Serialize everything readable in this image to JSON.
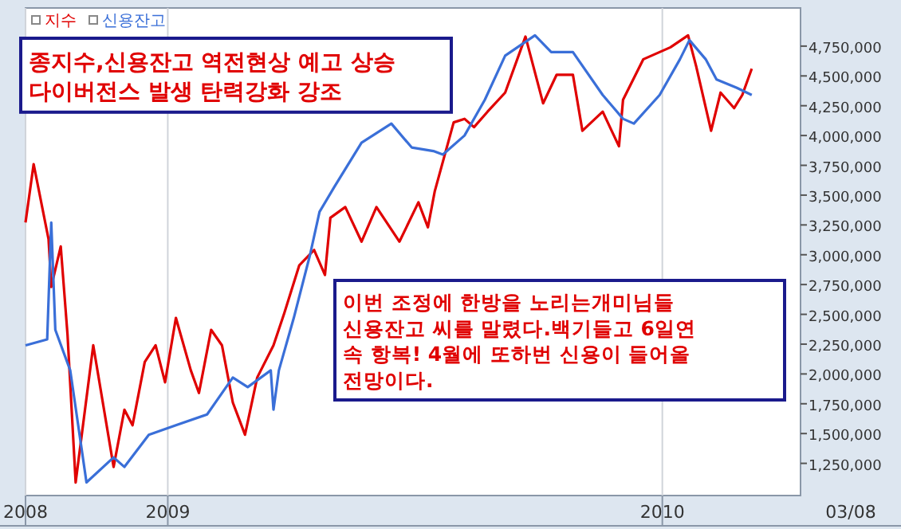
{
  "chart_data": {
    "type": "line",
    "series": [
      {
        "name": "지수",
        "color": "#e00000",
        "x": [
          "2008-09-18",
          "2008-09-24",
          "2008-10-05",
          "2008-10-07",
          "2008-10-14",
          "2008-10-19",
          "2008-10-25",
          "2008-11-07",
          "2008-11-22",
          "2008-11-30",
          "2008-12-06",
          "2008-12-15",
          "2008-12-23",
          "2008-12-30",
          "2009-01-07",
          "2009-01-18",
          "2009-01-24",
          "2009-02-02",
          "2009-02-10",
          "2009-02-18",
          "2009-02-27",
          "2009-03-08",
          "2009-03-20",
          "2009-03-28",
          "2009-04-08",
          "2009-04-19",
          "2009-04-27",
          "2009-05-01",
          "2009-05-12",
          "2009-05-24",
          "2009-06-04",
          "2009-06-21",
          "2009-07-05",
          "2009-07-12",
          "2009-07-17",
          "2009-07-31",
          "2009-08-08",
          "2009-08-15",
          "2009-08-25",
          "2009-09-07",
          "2009-09-22",
          "2009-10-05",
          "2009-10-15",
          "2009-10-27",
          "2009-11-03",
          "2009-11-18",
          "2009-11-30",
          "2009-12-03",
          "2009-12-18",
          "2010-01-07",
          "2010-01-20",
          "2010-01-26",
          "2010-02-06",
          "2010-02-13",
          "2010-02-23",
          "2010-03-01",
          "2010-03-08"
        ],
        "values": [
          3270000,
          3760000,
          3130000,
          2730000,
          3070000,
          2330000,
          1090000,
          2240000,
          1220000,
          1700000,
          1570000,
          2100000,
          2240000,
          1930000,
          2470000,
          2030000,
          1840000,
          2370000,
          2240000,
          1760000,
          1490000,
          1970000,
          2240000,
          2510000,
          2910000,
          3040000,
          2830000,
          3310000,
          3400000,
          3110000,
          3400000,
          3110000,
          3440000,
          3230000,
          3530000,
          4110000,
          4140000,
          4070000,
          4200000,
          4360000,
          4830000,
          4270000,
          4510000,
          4510000,
          4040000,
          4200000,
          3910000,
          4300000,
          4640000,
          4740000,
          4840000,
          4580000,
          4040000,
          4360000,
          4230000,
          4340000,
          4560000
        ]
      },
      {
        "name": "신용잔고",
        "color": "#3a6fd8",
        "x": [
          "2008-09-18",
          "2008-10-04",
          "2008-10-07",
          "2008-10-10",
          "2008-10-21",
          "2008-11-02",
          "2008-11-22",
          "2008-11-30",
          "2008-12-18",
          "2009-01-07",
          "2009-01-30",
          "2009-02-18",
          "2009-03-01",
          "2009-03-18",
          "2009-03-20",
          "2009-03-24",
          "2009-04-04",
          "2009-04-16",
          "2009-04-23",
          "2009-05-04",
          "2009-05-24",
          "2009-06-15",
          "2009-06-30",
          "2009-07-16",
          "2009-07-23",
          "2009-08-08",
          "2009-08-23",
          "2009-09-07",
          "2009-09-29",
          "2009-10-11",
          "2009-10-27",
          "2009-11-18",
          "2009-12-03",
          "2009-12-11",
          "2009-12-30",
          "2010-01-14",
          "2010-01-21",
          "2010-02-02",
          "2010-02-10",
          "2010-02-25",
          "2010-03-08"
        ],
        "values": [
          2240000,
          2290000,
          3270000,
          2370000,
          2030000,
          1090000,
          1300000,
          1220000,
          1490000,
          1570000,
          1660000,
          1970000,
          1890000,
          2030000,
          1700000,
          2030000,
          2470000,
          3000000,
          3360000,
          3570000,
          3940000,
          4100000,
          3900000,
          3870000,
          3840000,
          4000000,
          4300000,
          4670000,
          4840000,
          4700000,
          4700000,
          4340000,
          4140000,
          4100000,
          4340000,
          4640000,
          4800000,
          4640000,
          4470000,
          4400000,
          4340000
        ]
      }
    ],
    "xlim": [
      "2008-09-18",
      "2010-04-13"
    ],
    "xticks": [
      {
        "value": "2008-09-18",
        "label": "2008"
      },
      {
        "value": "2009-01-01",
        "label": "2009"
      },
      {
        "value": "2010-01-01",
        "label": "2010"
      }
    ],
    "ylim": [
      980000,
      5070000
    ],
    "yticks": [
      {
        "value": 1250000,
        "label": "1,250,000"
      },
      {
        "value": 1500000,
        "label": "1,500,000"
      },
      {
        "value": 1750000,
        "label": "1,750,000"
      },
      {
        "value": 2000000,
        "label": "2,000,000"
      },
      {
        "value": 2250000,
        "label": "2,250,000"
      },
      {
        "value": 2500000,
        "label": "2,500,000"
      },
      {
        "value": 2750000,
        "label": "2,750,000"
      },
      {
        "value": 3000000,
        "label": "3,000,000"
      },
      {
        "value": 3250000,
        "label": "3,250,000"
      },
      {
        "value": 3500000,
        "label": "3,500,000"
      },
      {
        "value": 3750000,
        "label": "3,750,000"
      },
      {
        "value": 4000000,
        "label": "4,000,000"
      },
      {
        "value": 4250000,
        "label": "4,250,000"
      },
      {
        "value": 4500000,
        "label": "4,500,000"
      },
      {
        "value": 4750000,
        "label": "4,750,000"
      }
    ],
    "grid": "x",
    "legend": "top left",
    "marker": "none",
    "line_style": "solid",
    "annotations": [
      "종지수,신용잔고 역전현상 예고 상승\n다이버전스 발생 탄력강화 강조",
      "이번 조정에 한방을 노리는개미님들\n신용잔고 씨를 말렸다.백기들고 6일연\n속 항복! 4월에 또하번 신용이 들어올\n전망이다.",
      "03/08"
    ]
  }
}
